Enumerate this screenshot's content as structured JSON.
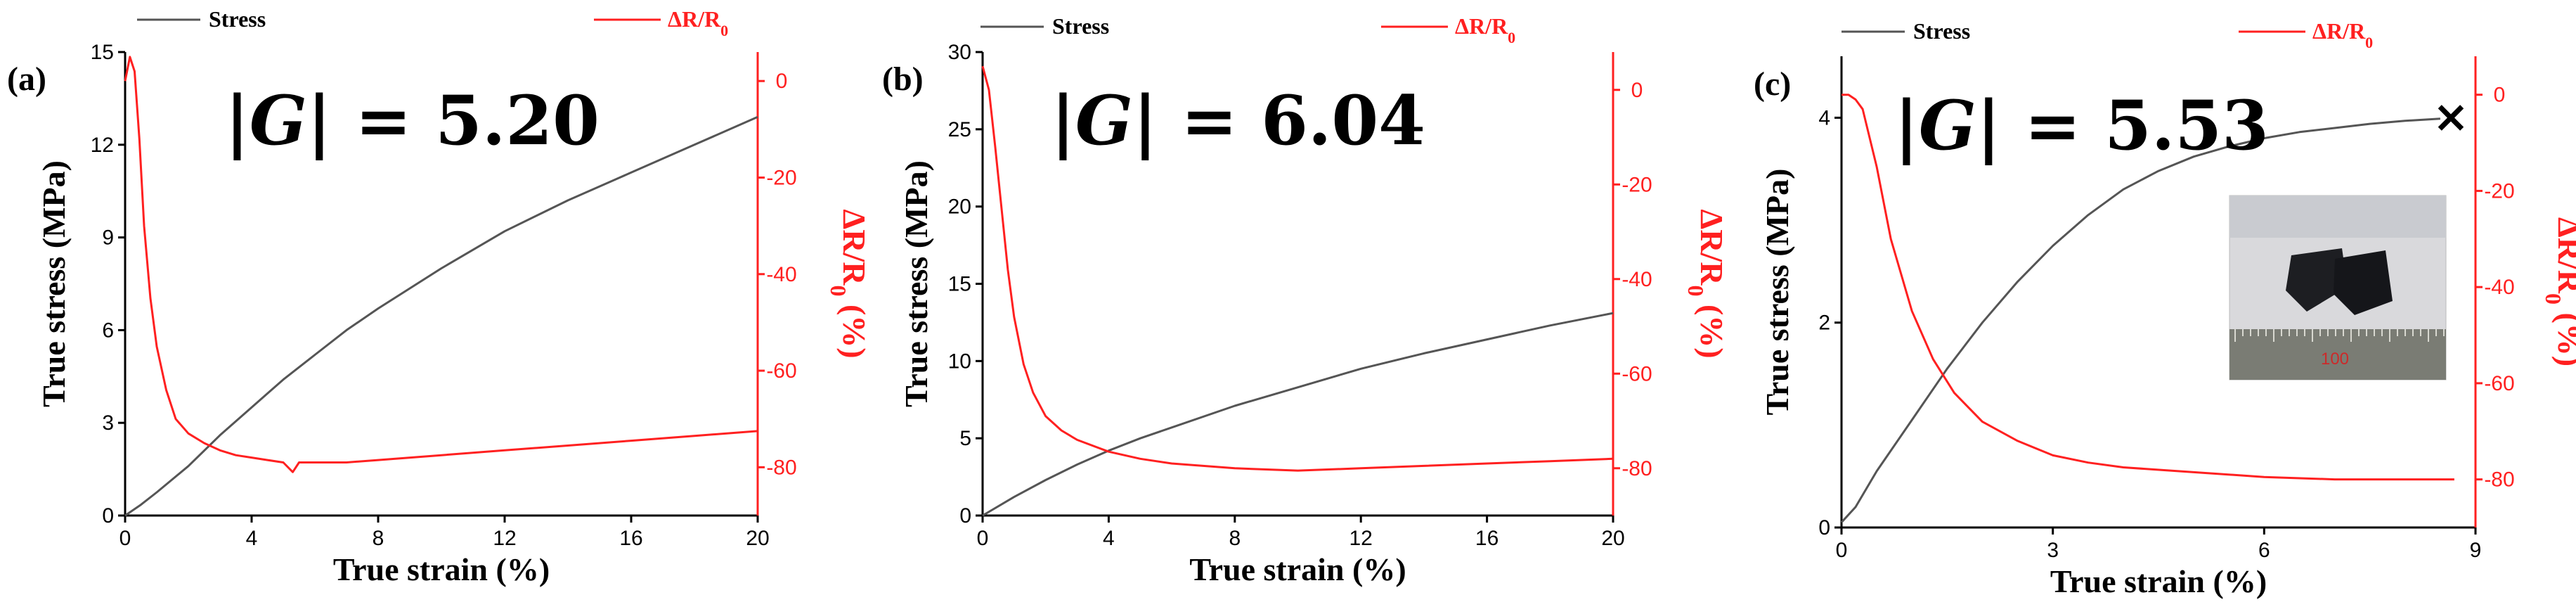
{
  "colors": {
    "stress": "#555555",
    "resistance": "#ff2020"
  },
  "chart_data": [
    {
      "type": "line",
      "panel_label": "(a)",
      "annotation": {
        "prefix": "|",
        "variable": "G",
        "suffix": "| = ",
        "value": "5.20"
      },
      "legend": {
        "stress": "Stress",
        "resistance": "ΔR/R",
        "resistance_sub": "0"
      },
      "xlabel": "True strain (%)",
      "ylabel_left": "True stress (MPa)",
      "ylabel_right": "ΔR/R",
      "ylabel_right_sub": "0",
      "ylabel_right_suffix": " (%)",
      "xlim": [
        0,
        20
      ],
      "xticks": [
        0,
        4,
        8,
        12,
        16,
        20
      ],
      "ylim_left": [
        0,
        15
      ],
      "yticks_left": [
        0,
        3,
        6,
        9,
        12,
        15
      ],
      "ylim_right": [
        -90,
        6
      ],
      "yticks_right": [
        0,
        -20,
        -40,
        -60,
        -80
      ],
      "series": [
        {
          "name": "Stress",
          "axis": "left",
          "x": [
            0,
            0.5,
            1,
            2,
            3,
            4,
            5,
            6,
            7,
            8,
            10,
            12,
            14,
            16,
            18,
            20
          ],
          "y": [
            0,
            0.35,
            0.75,
            1.6,
            2.6,
            3.5,
            4.4,
            5.2,
            6.0,
            6.7,
            8.0,
            9.2,
            10.2,
            11.1,
            12.0,
            12.9
          ]
        },
        {
          "name": "ΔR/R0",
          "axis": "right",
          "x": [
            0,
            0.15,
            0.3,
            0.45,
            0.6,
            0.8,
            1.0,
            1.3,
            1.6,
            2.0,
            2.5,
            3.0,
            3.5,
            4.0,
            4.5,
            5.0,
            5.3,
            5.5,
            6,
            7,
            8,
            10,
            12,
            14,
            16,
            18,
            20
          ],
          "y": [
            0,
            5,
            2,
            -12,
            -30,
            -45,
            -55,
            -64,
            -70,
            -73,
            -75,
            -76.5,
            -77.5,
            -78,
            -78.5,
            -79,
            -81,
            -79,
            -79,
            -79,
            -78.5,
            -77.5,
            -76.5,
            -75.5,
            -74.5,
            -73.5,
            -72.5
          ]
        }
      ]
    },
    {
      "type": "line",
      "panel_label": "(b)",
      "annotation": {
        "prefix": "|",
        "variable": "G",
        "suffix": "| = ",
        "value": "6.04"
      },
      "legend": {
        "stress": "Stress",
        "resistance": "ΔR/R",
        "resistance_sub": "0"
      },
      "xlabel": "True strain (%)",
      "ylabel_left": "True stress (MPa)",
      "ylabel_right": "ΔR/R",
      "ylabel_right_sub": "0",
      "ylabel_right_suffix": " (%)",
      "xlim": [
        0,
        20
      ],
      "xticks": [
        0,
        4,
        8,
        12,
        16,
        20
      ],
      "ylim_left": [
        0,
        30
      ],
      "yticks_left": [
        0,
        5,
        10,
        15,
        20,
        25,
        30
      ],
      "ylim_right": [
        -90,
        8
      ],
      "yticks_right": [
        0,
        -20,
        -40,
        -60,
        -80
      ],
      "series": [
        {
          "name": "Stress",
          "axis": "left",
          "x": [
            0,
            1,
            2,
            3,
            4,
            5,
            6,
            8,
            10,
            12,
            14,
            16,
            18,
            20
          ],
          "y": [
            0,
            1.2,
            2.3,
            3.3,
            4.2,
            5.0,
            5.7,
            7.1,
            8.3,
            9.5,
            10.5,
            11.4,
            12.3,
            13.1
          ]
        },
        {
          "name": "ΔR/R0",
          "axis": "right",
          "x": [
            0,
            0.2,
            0.4,
            0.6,
            0.8,
            1.0,
            1.3,
            1.6,
            2.0,
            2.5,
            3.0,
            4.0,
            5.0,
            6.0,
            8.0,
            10.0,
            12.0,
            14.0,
            16.0,
            18.0,
            20.0
          ],
          "y": [
            5,
            0,
            -12,
            -25,
            -38,
            -48,
            -58,
            -64,
            -69,
            -72,
            -74,
            -76.5,
            -78,
            -79,
            -80,
            -80.5,
            -80,
            -79.5,
            -79,
            -78.5,
            -78
          ]
        }
      ]
    },
    {
      "type": "line",
      "panel_label": "(c)",
      "annotation": {
        "prefix": "|",
        "variable": "G",
        "suffix": "| = ",
        "value": "5.53"
      },
      "legend": {
        "stress": "Stress",
        "resistance": "ΔR/R",
        "resistance_sub": "0"
      },
      "xlabel": "True strain (%)",
      "ylabel_left": "True stress (MPa)",
      "ylabel_right": "ΔR/R",
      "ylabel_right_sub": "0",
      "ylabel_right_suffix": " (%)",
      "xlim": [
        0,
        9
      ],
      "xticks": [
        0,
        3,
        6,
        9
      ],
      "ylim_left": [
        0,
        4.6
      ],
      "yticks_left": [
        0,
        2,
        4
      ],
      "ylim_right": [
        -90,
        8
      ],
      "yticks_right": [
        0,
        -20,
        -40,
        -60,
        -80
      ],
      "fracture_marker": "×",
      "inset_scale": "100",
      "series": [
        {
          "name": "Stress",
          "axis": "left",
          "x": [
            0,
            0.2,
            0.5,
            1.0,
            1.5,
            2.0,
            2.5,
            3.0,
            3.5,
            4.0,
            4.5,
            5.0,
            5.5,
            6.0,
            6.5,
            7.0,
            7.5,
            8.0,
            8.5
          ],
          "y": [
            0.05,
            0.2,
            0.55,
            1.05,
            1.55,
            2.0,
            2.4,
            2.75,
            3.05,
            3.3,
            3.48,
            3.62,
            3.72,
            3.8,
            3.86,
            3.9,
            3.94,
            3.97,
            3.99
          ]
        },
        {
          "name": "ΔR/R0",
          "axis": "right",
          "x": [
            0,
            0.1,
            0.2,
            0.3,
            0.5,
            0.7,
            1.0,
            1.3,
            1.6,
            2.0,
            2.5,
            3.0,
            3.5,
            4.0,
            5.0,
            6.0,
            7.0,
            8.0,
            8.7
          ],
          "y": [
            0,
            0,
            -1,
            -3,
            -15,
            -30,
            -45,
            -55,
            -62,
            -68,
            -72,
            -75,
            -76.5,
            -77.5,
            -78.5,
            -79.5,
            -80,
            -80,
            -80
          ]
        }
      ]
    }
  ]
}
